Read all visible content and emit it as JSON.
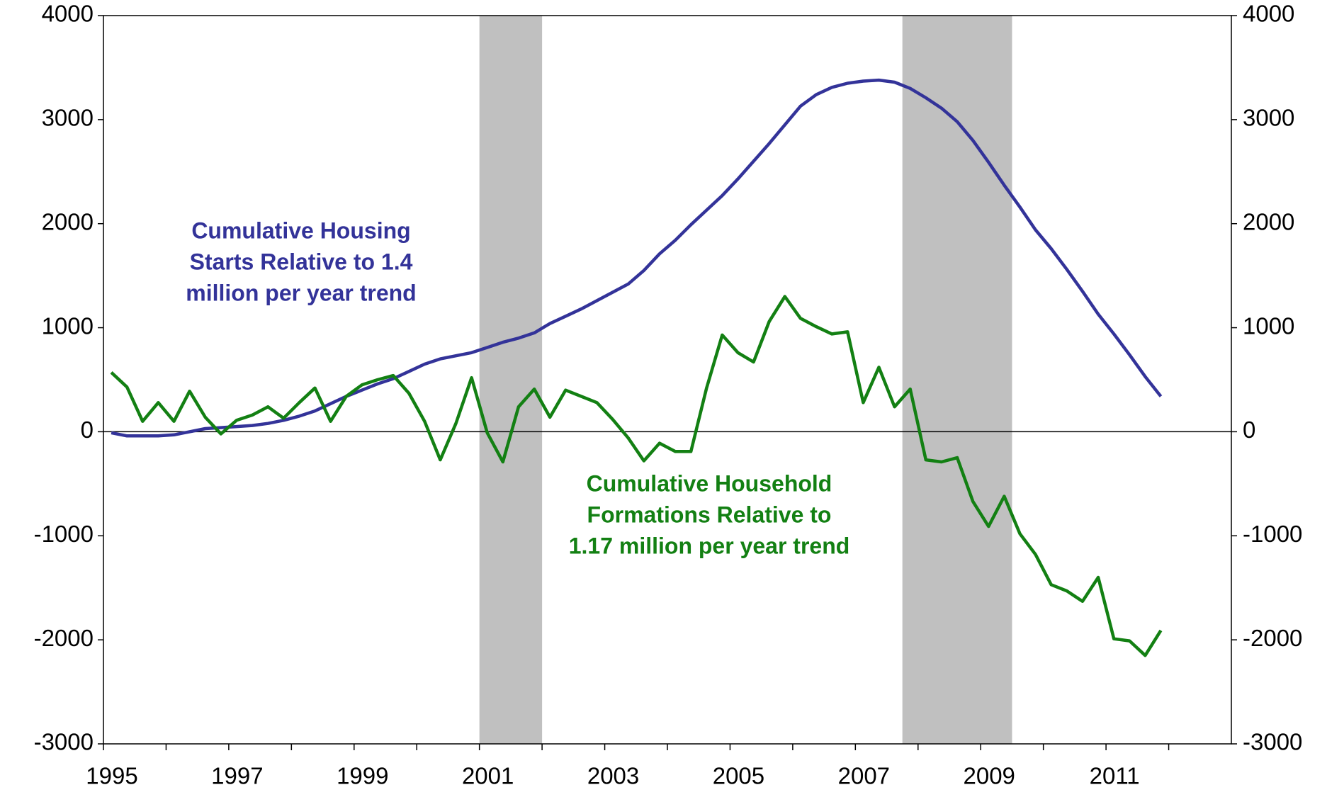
{
  "chart_data": {
    "type": "line",
    "x": [
      1995.125,
      1995.375,
      1995.625,
      1995.875,
      1996.125,
      1996.375,
      1996.625,
      1996.875,
      1997.125,
      1997.375,
      1997.625,
      1997.875,
      1998.125,
      1998.375,
      1998.625,
      1998.875,
      1999.125,
      1999.375,
      1999.625,
      1999.875,
      2000.125,
      2000.375,
      2000.625,
      2000.875,
      2001.125,
      2001.375,
      2001.625,
      2001.875,
      2002.125,
      2002.375,
      2002.625,
      2002.875,
      2003.125,
      2003.375,
      2003.625,
      2003.875,
      2004.125,
      2004.375,
      2004.625,
      2004.875,
      2005.125,
      2005.375,
      2005.625,
      2005.875,
      2006.125,
      2006.375,
      2006.625,
      2006.875,
      2007.125,
      2007.375,
      2007.625,
      2007.875,
      2008.125,
      2008.375,
      2008.625,
      2008.875,
      2009.125,
      2009.375,
      2009.625,
      2009.875,
      2010.125,
      2010.375,
      2010.625,
      2010.875,
      2011.125,
      2011.375,
      2011.625,
      2011.875
    ],
    "series": [
      {
        "name": "Cumulative Housing Starts Relative to 1.4 million per year trend",
        "color": "#333399",
        "values": [
          -10,
          -40,
          -40,
          -40,
          -30,
          0,
          30,
          40,
          50,
          60,
          80,
          110,
          150,
          200,
          270,
          340,
          400,
          460,
          510,
          580,
          650,
          700,
          730,
          760,
          810,
          860,
          900,
          950,
          1040,
          1110,
          1180,
          1260,
          1340,
          1420,
          1550,
          1710,
          1840,
          1990,
          2130,
          2270,
          2430,
          2600,
          2770,
          2950,
          3130,
          3240,
          3310,
          3350,
          3370,
          3380,
          3360,
          3300,
          3210,
          3110,
          2980,
          2800,
          2590,
          2370,
          2160,
          1940,
          1760,
          1560,
          1350,
          1130,
          940,
          740,
          530,
          340
        ]
      },
      {
        "name": "Cumulative Household Formations Relative to 1.17 million per year trend",
        "color": "#138013",
        "values": [
          570,
          430,
          100,
          280,
          100,
          390,
          140,
          -20,
          110,
          160,
          240,
          130,
          280,
          420,
          100,
          340,
          450,
          500,
          540,
          370,
          100,
          -270,
          80,
          520,
          -10,
          -290,
          240,
          410,
          140,
          400,
          340,
          280,
          120,
          -60,
          -280,
          -110,
          -190,
          -190,
          420,
          930,
          760,
          670,
          1060,
          1300,
          1090,
          1010,
          940,
          960,
          280,
          620,
          240,
          410,
          -270,
          -290,
          -250,
          -670,
          -910,
          -620,
          -980,
          -1180,
          -1470,
          -1530,
          -1630,
          -1400,
          -1990,
          -2010,
          -2150,
          -1910
        ]
      }
    ],
    "annotations": [
      {
        "lines": [
          "Cumulative Housing",
          "Starts Relative to 1.4",
          "million per year trend"
        ],
        "color": "#333399"
      },
      {
        "lines": [
          "Cumulative Household",
          "Formations Relative to",
          "1.17 million per year trend"
        ],
        "color": "#138013"
      }
    ],
    "shaded": [
      [
        2001.0,
        2002.0
      ],
      [
        2007.75,
        2009.5
      ]
    ],
    "shade_color": "#c0c0c0",
    "xlim": [
      1995,
      2013
    ],
    "xticks": [
      1995,
      1997,
      1999,
      2001,
      2003,
      2005,
      2007,
      2009,
      2011
    ],
    "xminor_ticks": [
      1996,
      1998,
      2000,
      2002,
      2004,
      2006,
      2008,
      2010,
      2012
    ],
    "ylim": [
      -3000,
      4000
    ],
    "yticks": [
      -3000,
      -2000,
      -1000,
      0,
      1000,
      2000,
      3000,
      4000
    ],
    "y2lim": [
      -3000,
      4000
    ],
    "y2ticks": [
      -3000,
      -2000,
      -1000,
      0,
      1000,
      2000,
      3000,
      4000
    ],
    "legend": false
  }
}
